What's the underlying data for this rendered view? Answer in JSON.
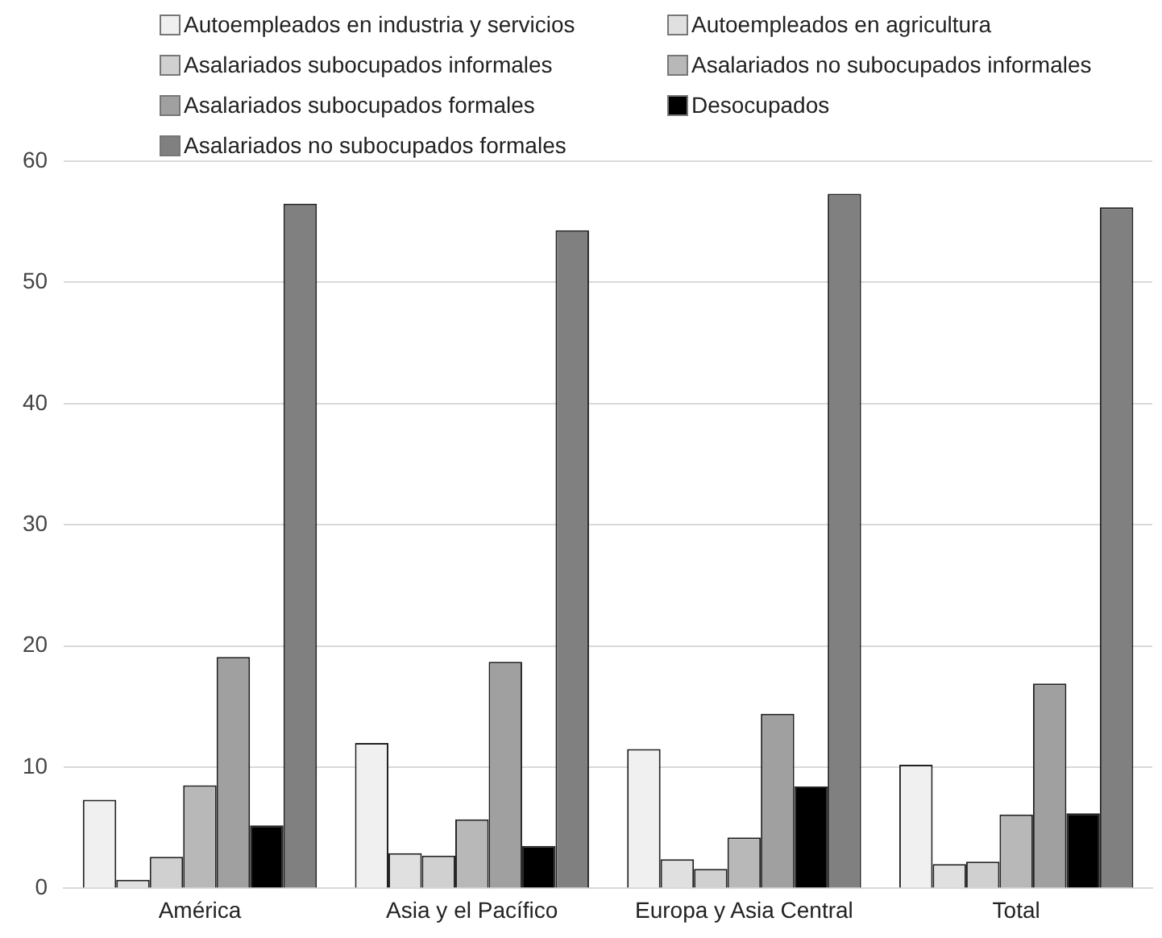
{
  "chart_data": {
    "type": "bar",
    "categories": [
      "América",
      "Asia y el Pacífico",
      "Europa y Asia Central",
      "Total"
    ],
    "series": [
      {
        "name": "Autoempleados en industria y servicios",
        "color": "#f0f0f0",
        "values": [
          7.3,
          12.0,
          11.5,
          10.2
        ]
      },
      {
        "name": "Autoempleados en agricultura",
        "color": "#e0e0e0",
        "values": [
          0.7,
          2.9,
          2.4,
          2.0
        ]
      },
      {
        "name": "Asalariados subocupados informales",
        "color": "#d0d0d0",
        "values": [
          2.6,
          2.7,
          1.6,
          2.2
        ]
      },
      {
        "name": "Asalariados no subocupados informales",
        "color": "#b8b8b8",
        "values": [
          8.5,
          5.7,
          4.2,
          6.1
        ]
      },
      {
        "name": "Asalariados subocupados formales",
        "color": "#a0a0a0",
        "values": [
          19.1,
          18.7,
          14.4,
          16.9
        ]
      },
      {
        "name": "Desocupados",
        "color": "#000000",
        "values": [
          5.2,
          3.5,
          8.4,
          6.2
        ]
      },
      {
        "name": "Asalariados no subocupados formales",
        "color": "#808080",
        "values": [
          56.5,
          54.3,
          57.3,
          56.2
        ]
      }
    ],
    "ylim": [
      0,
      60
    ],
    "yticks": [
      0,
      10,
      20,
      30,
      40,
      50,
      60
    ],
    "grid": "y",
    "legend": "top"
  }
}
